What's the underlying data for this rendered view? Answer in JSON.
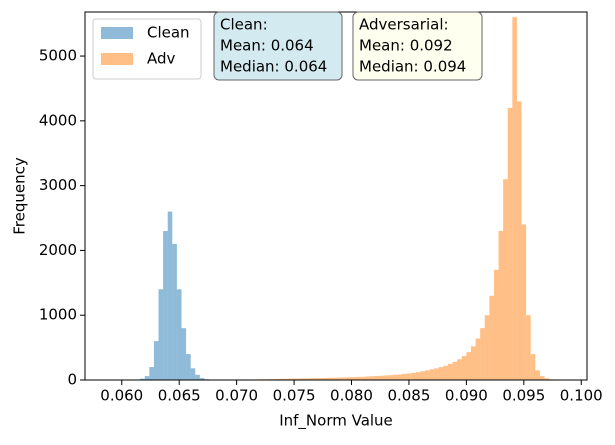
{
  "chart_data": {
    "type": "histogram",
    "xlabel": "Inf_Norm Value",
    "ylabel": "Frequency",
    "xlim": [
      0.0568,
      0.1005
    ],
    "ylim": [
      0,
      5680
    ],
    "xticks": [
      {
        "value": 0.06,
        "label": "0.060"
      },
      0.065,
      {
        "value": 0.07,
        "label": "0.070"
      },
      0.075,
      {
        "value": 0.08,
        "label": "0.080"
      },
      0.085,
      {
        "value": 0.09,
        "label": "0.090"
      },
      0.095,
      {
        "value": 0.1,
        "label": "0.100"
      }
    ],
    "yticks": [
      0,
      1000,
      2000,
      3000,
      4000,
      5000
    ],
    "legend": "upper left",
    "alpha": 0.5,
    "series": [
      {
        "name": "Clean",
        "color": "#1f77b4",
        "bins": [
          0.0616,
          0.062,
          0.0624,
          0.0628,
          0.0632,
          0.0636,
          0.064,
          0.0644,
          0.0648,
          0.0652,
          0.0656,
          0.066,
          0.0664,
          0.0668,
          0.0672,
          0.0676,
          0.068
        ],
        "values": [
          20,
          60,
          200,
          600,
          1400,
          2300,
          2600,
          2100,
          1400,
          800,
          400,
          180,
          80,
          30,
          12,
          5
        ]
      },
      {
        "name": "Adv",
        "color": "#ff7f0e",
        "bins": [
          0.07,
          0.0704,
          0.0708,
          0.0712,
          0.0716,
          0.072,
          0.0724,
          0.0728,
          0.0732,
          0.0736,
          0.074,
          0.0744,
          0.0748,
          0.0752,
          0.0756,
          0.076,
          0.0764,
          0.0768,
          0.0772,
          0.0776,
          0.078,
          0.0784,
          0.0788,
          0.0792,
          0.0796,
          0.08,
          0.0804,
          0.0808,
          0.0812,
          0.0816,
          0.082,
          0.0824,
          0.0828,
          0.0832,
          0.0836,
          0.084,
          0.0844,
          0.0848,
          0.0852,
          0.0856,
          0.086,
          0.0864,
          0.0868,
          0.0872,
          0.0876,
          0.088,
          0.0884,
          0.0888,
          0.0892,
          0.0896,
          0.09,
          0.0904,
          0.0908,
          0.0912,
          0.0916,
          0.092,
          0.0924,
          0.0928,
          0.0932,
          0.0936,
          0.094,
          0.0944,
          0.0948,
          0.0952,
          0.0956,
          0.096,
          0.0964,
          0.0968,
          0.0972,
          0.0976,
          0.098
        ],
        "values": [
          5,
          6,
          8,
          8,
          10,
          12,
          12,
          14,
          15,
          18,
          18,
          20,
          22,
          22,
          25,
          25,
          28,
          30,
          30,
          32,
          35,
          35,
          38,
          40,
          42,
          45,
          48,
          50,
          55,
          58,
          62,
          65,
          70,
          75,
          80,
          85,
          95,
          100,
          110,
          120,
          135,
          150,
          165,
          180,
          200,
          220,
          250,
          280,
          320,
          370,
          430,
          520,
          640,
          800,
          1000,
          1300,
          1700,
          2300,
          3100,
          4200,
          5600,
          4300,
          2400,
          1000,
          400,
          150,
          60,
          25,
          10,
          5
        ]
      }
    ],
    "annotations": [
      {
        "lines": [
          "Clean:",
          "Mean: 0.064",
          "Median: 0.064"
        ],
        "color": "#d4eaf1"
      },
      {
        "lines": [
          "Adversarial:",
          "Mean: 0.092",
          "Median: 0.094"
        ],
        "color": "#fffff0"
      }
    ]
  }
}
